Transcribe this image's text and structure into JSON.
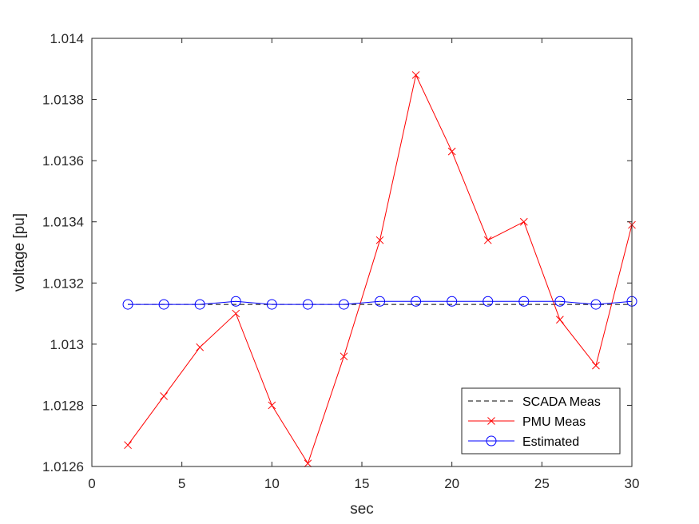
{
  "chart_data": {
    "type": "line",
    "xlabel": "sec",
    "ylabel": "voltage [pu]",
    "xlim": [
      0,
      30
    ],
    "ylim": [
      1.0126,
      1.014
    ],
    "xticks": [
      "0",
      "5",
      "10",
      "15",
      "20",
      "25",
      "30"
    ],
    "yticks": [
      "1.0126",
      "1.0128",
      "1.013",
      "1.0132",
      "1.0134",
      "1.0136",
      "1.0138",
      "1.014"
    ],
    "grid": false,
    "legend_position": "bottom-right",
    "x": [
      2,
      4,
      6,
      8,
      10,
      12,
      14,
      16,
      18,
      20,
      22,
      24,
      26,
      28,
      30
    ],
    "series": [
      {
        "name": "SCADA Meas",
        "color": "#000000",
        "style": "dashed",
        "marker": "none",
        "values": [
          1.01313,
          1.01313,
          1.01313,
          1.01313,
          1.01313,
          1.01313,
          1.01313,
          1.01313,
          1.01313,
          1.01313,
          1.01313,
          1.01313,
          1.01313,
          1.01313,
          1.01313
        ]
      },
      {
        "name": "PMU Meas",
        "color": "#ff0000",
        "style": "solid",
        "marker": "x",
        "values": [
          1.01267,
          1.01283,
          1.01299,
          1.0131,
          1.0128,
          1.01261,
          1.01296,
          1.01334,
          1.01388,
          1.01363,
          1.01334,
          1.0134,
          1.01308,
          1.01293,
          1.01339
        ]
      },
      {
        "name": "Estimated",
        "color": "#0000ff",
        "style": "solid",
        "marker": "circle",
        "values": [
          1.01313,
          1.01313,
          1.01313,
          1.01314,
          1.01313,
          1.01313,
          1.01313,
          1.01314,
          1.01314,
          1.01314,
          1.01314,
          1.01314,
          1.01314,
          1.01313,
          1.01314
        ]
      }
    ]
  }
}
